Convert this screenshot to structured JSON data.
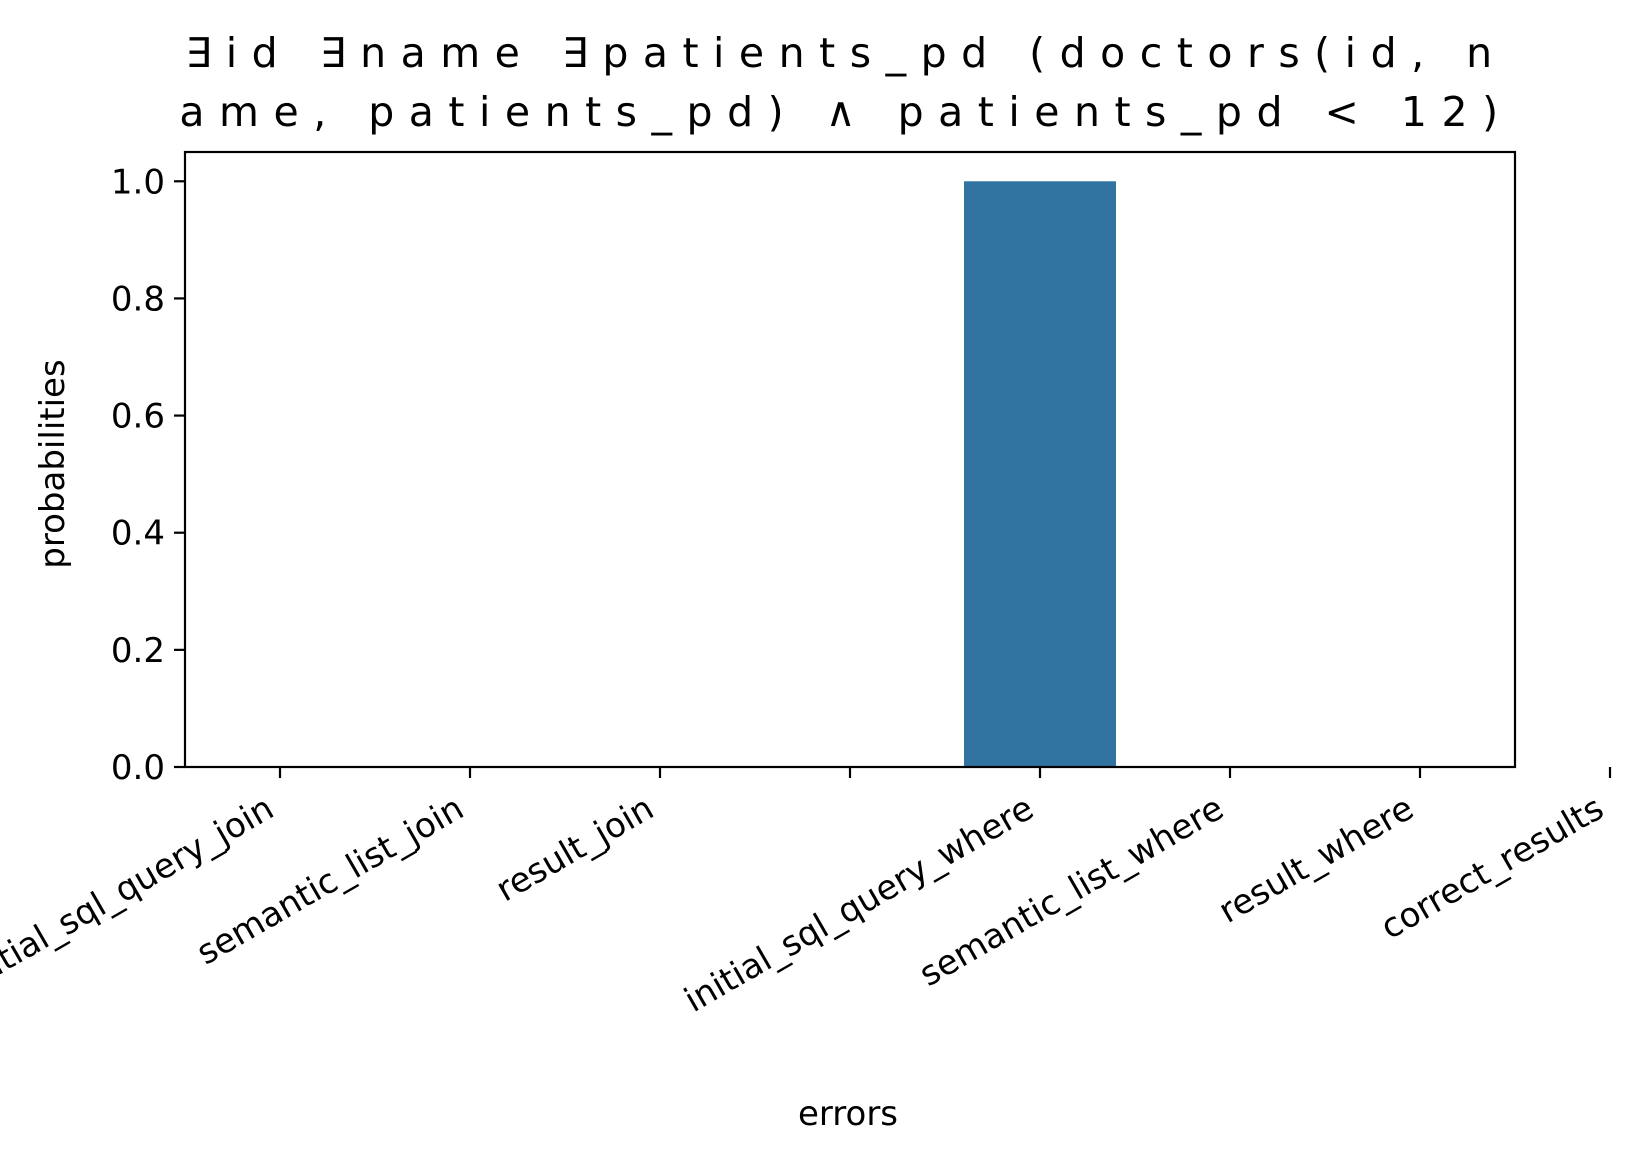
{
  "chart_data": {
    "type": "bar",
    "title_lines": [
      "∃id ∃name ∃patients_pd (doctors(id, n",
      "ame, patients_pd) ∧ patients_pd < 12)"
    ],
    "xlabel": "errors",
    "ylabel": "probabilities",
    "categories": [
      "initial_sql_query_join",
      "semantic_list_join",
      "result_join",
      "",
      "initial_sql_query_where",
      "semantic_list_where",
      "result_where",
      "correct_results"
    ],
    "values": [
      0,
      0,
      0,
      0,
      1.0,
      0,
      0,
      0
    ],
    "ylim": [
      0,
      1.05
    ],
    "yticks": [
      0.0,
      0.2,
      0.4,
      0.6,
      0.8,
      1.0
    ],
    "ytick_labels": [
      "0.0",
      "0.2",
      "0.4",
      "0.6",
      "0.8",
      "1.0"
    ],
    "bar_color": "#3274a1",
    "grid": false,
    "legend": "none"
  }
}
